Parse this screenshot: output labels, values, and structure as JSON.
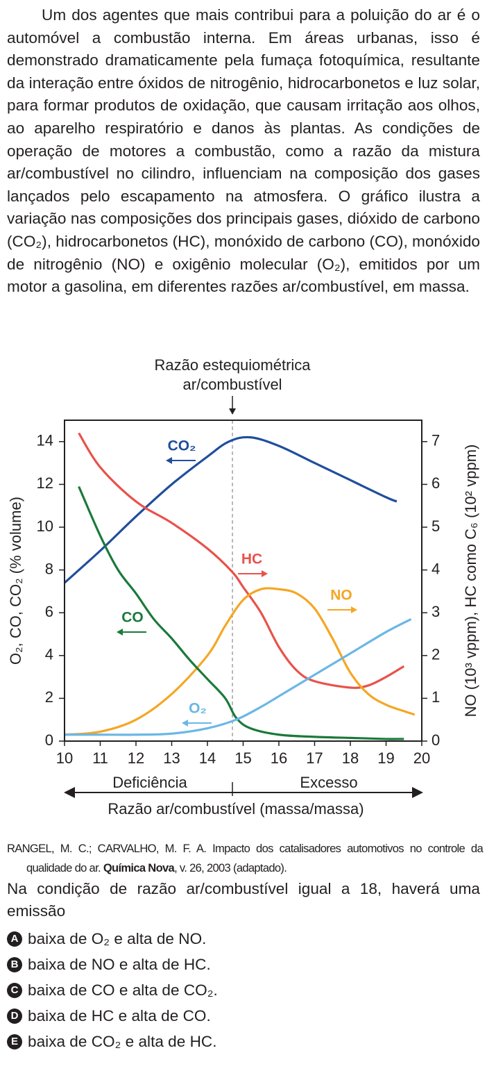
{
  "passage": "Um dos agentes que mais contribui para a poluição do ar é o automóvel a combustão interna. Em áreas urbanas, isso é demonstrado dramaticamente pela fumaça fotoquímica, resultante da interação entre óxidos de nitrogênio, hidrocarbonetos e luz solar, para formar produtos de oxidação, que causam irritação aos olhos, ao aparelho respiratório e danos às plantas. As condições de operação de motores a combustão, como a razão da mistura ar/combustível no cilindro, influenciam na composição dos gases lançados pelo escapamento na atmosfera. O gráfico ilustra a variação nas composições dos principais gases, dióxido de carbono (CO₂), hidrocarbonetos (HC), monóxido de carbono (CO), monóxido de nitrogênio (NO) e oxigênio molecular (O₂), emitidos por um motor a gasolina, em diferentes razões ar/combustível, em massa.",
  "chart_data": {
    "type": "line",
    "annotation": [
      "Razão estequiométrica",
      "ar/combustível"
    ],
    "reference_x": 14.7,
    "x_label": "Razão ar/combustível (massa/massa)",
    "regions": [
      "Deficiência",
      "Excesso"
    ],
    "y_label": "O₂, CO, CO₂ (% volume)",
    "y2_label": "NO (10³ vppm), HC como C₆ (10² vppm)",
    "xlim": [
      10,
      20
    ],
    "xticks": [
      10,
      11,
      12,
      13,
      14,
      15,
      16,
      17,
      18,
      19,
      20
    ],
    "ylim": [
      0,
      15
    ],
    "yticks": [
      0,
      2,
      4,
      6,
      8,
      10,
      12,
      14
    ],
    "y2lim": [
      0,
      7.5
    ],
    "y2ticks": [
      0,
      1,
      2,
      3,
      4,
      5,
      6,
      7
    ],
    "series": [
      {
        "name": "CO₂",
        "color": "#1f4e9c",
        "x": [
          10,
          11,
          12,
          13,
          14,
          14.6,
          15.2,
          16,
          17,
          18,
          19,
          19.3
        ],
        "values": [
          7.4,
          8.9,
          10.5,
          12.0,
          13.3,
          14.0,
          14.2,
          13.8,
          13.0,
          12.2,
          11.4,
          11.2
        ]
      },
      {
        "name": "HC",
        "color": "#e8524a",
        "axis": "y2",
        "x": [
          10.4,
          11,
          12,
          13,
          14,
          14.7,
          15,
          15.5,
          16,
          16.5,
          17,
          18,
          18.5,
          19,
          19.5
        ],
        "values": [
          7.2,
          6.4,
          5.6,
          5.1,
          4.5,
          3.95,
          3.6,
          3.0,
          2.2,
          1.65,
          1.4,
          1.25,
          1.3,
          1.5,
          1.75
        ]
      },
      {
        "name": "NO",
        "color": "#f5a623",
        "axis": "y2",
        "x": [
          10,
          11,
          12,
          13,
          14,
          14.5,
          15,
          15.5,
          16,
          16.5,
          17,
          17.5,
          18,
          18.5,
          19,
          19.5,
          19.8
        ],
        "values": [
          0.15,
          0.22,
          0.5,
          1.1,
          2.0,
          2.7,
          3.3,
          3.55,
          3.55,
          3.45,
          3.1,
          2.4,
          1.6,
          1.1,
          0.85,
          0.7,
          0.62
        ]
      },
      {
        "name": "CO",
        "color": "#1a7a3a",
        "x": [
          10.4,
          11,
          11.5,
          12,
          12.5,
          13,
          13.5,
          14,
          14.5,
          14.8,
          15.2,
          16,
          17,
          18,
          19,
          19.5
        ],
        "values": [
          11.9,
          9.6,
          8.0,
          6.9,
          5.7,
          4.8,
          3.8,
          2.9,
          2.0,
          1.1,
          0.6,
          0.3,
          0.2,
          0.15,
          0.1,
          0.1
        ]
      },
      {
        "name": "O₂",
        "color": "#6ab7e6",
        "x": [
          10,
          11,
          12,
          13,
          14,
          14.8,
          15.5,
          16,
          17,
          18,
          19,
          19.7
        ],
        "values": [
          0.3,
          0.3,
          0.3,
          0.35,
          0.6,
          1.0,
          1.6,
          2.1,
          3.1,
          4.1,
          5.1,
          5.7
        ]
      }
    ]
  },
  "source": {
    "before": "RANGEL, M. C.; CARVALHO, M. F. A. Impacto dos catalisadores automotivos no controle da qualidade do ar. ",
    "bold": "Química Nova",
    "after": ", v. 26, 2003 (adaptado)."
  },
  "question": "Na condição de razão ar/combustível igual a 18, haverá uma emissão",
  "options": [
    {
      "letter": "A",
      "text": "baixa de O₂ e alta de NO."
    },
    {
      "letter": "B",
      "text": "baixa de NO e alta de HC."
    },
    {
      "letter": "C",
      "text": "baixa de CO e alta de CO₂."
    },
    {
      "letter": "D",
      "text": "baixa de HC e alta de CO."
    },
    {
      "letter": "E",
      "text": "baixa de CO₂ e alta de HC."
    }
  ]
}
